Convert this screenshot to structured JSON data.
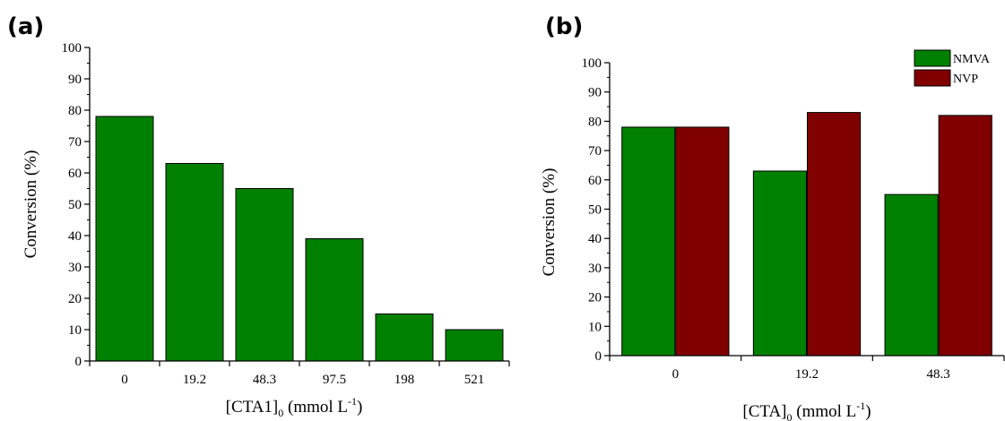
{
  "colors": {
    "nmva": "#008000",
    "nvp": "#800000"
  },
  "chart_data": [
    {
      "panel": "(a)",
      "type": "bar",
      "categories": [
        "0",
        "19.2",
        "48.3",
        "97.5",
        "198",
        "521"
      ],
      "series": [
        {
          "values": [
            78,
            63,
            55,
            39,
            15,
            10
          ]
        }
      ],
      "xlabel": {
        "main": "[CTA1]",
        "sub": "0",
        "units": " (mmol L",
        "sup": "-1",
        "close": ")"
      },
      "ylabel": "Conversion (%)",
      "ylim": [
        0,
        100
      ],
      "yticks": [
        0,
        10,
        20,
        30,
        40,
        50,
        60,
        70,
        80,
        90,
        100
      ],
      "grid": false,
      "legend": "none"
    },
    {
      "panel": "(b)",
      "type": "bar",
      "categories": [
        "0",
        "19.2",
        "48.3"
      ],
      "series": [
        {
          "name": "NMVA",
          "values": [
            78,
            63,
            55
          ]
        },
        {
          "name": "NVP",
          "values": [
            78,
            83,
            82
          ]
        }
      ],
      "xlabel": {
        "main": "[CTA]",
        "sub": "0",
        "units": " (mmol L",
        "sup": "-1",
        "close": ")"
      },
      "ylabel": "Conversion (%)",
      "ylim": [
        0,
        100
      ],
      "yticks": [
        0,
        10,
        20,
        30,
        40,
        50,
        60,
        70,
        80,
        90,
        100
      ],
      "grid": false,
      "legend": "top-right"
    }
  ]
}
